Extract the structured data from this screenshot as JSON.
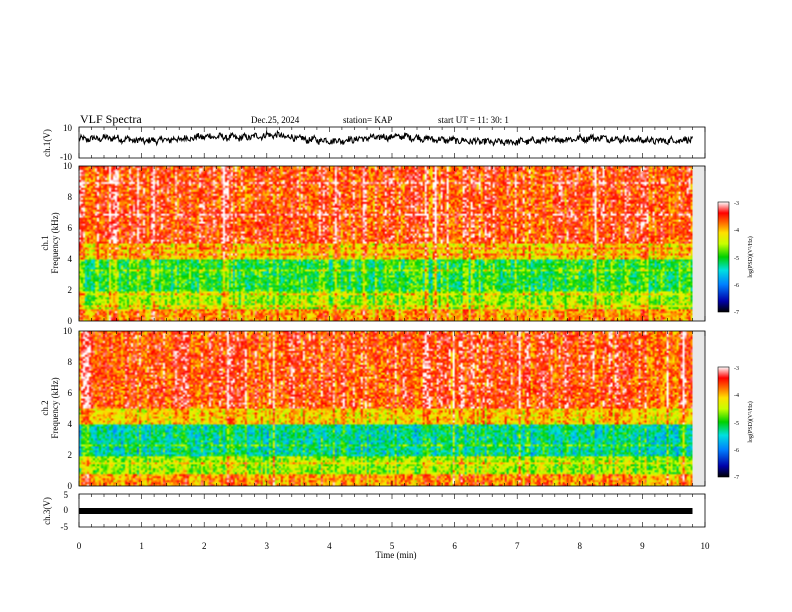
{
  "header": {
    "title": "VLF Spectra",
    "date": "Dec.25, 2024",
    "station": "station= KAP",
    "start": "start UT =   11: 30: 1"
  },
  "chart_data": [
    {
      "type": "line",
      "panel": "ch1-waveform",
      "ylabel": "ch.1(V)",
      "ylim": [
        -10,
        10
      ],
      "yticks": [
        "10",
        "-10"
      ],
      "series": [
        {
          "name": "ch.1",
          "approx_level": [
            2,
            3,
            1,
            2,
            4,
            3,
            5,
            2,
            1,
            3,
            4,
            2,
            1,
            0,
            1,
            2,
            3,
            2,
            1,
            2
          ]
        }
      ]
    },
    {
      "type": "heatmap",
      "panel": "ch1-spectrogram",
      "ylabel": "ch.1\nFrequency (kHz)",
      "ylabel_line1": "ch.1",
      "ylabel_line2": "Frequency (kHz)",
      "ylim": [
        0,
        10
      ],
      "yticks": [
        "0",
        "2",
        "4",
        "6",
        "8",
        "10"
      ],
      "colorbar": {
        "label": "log(PSD)(V²/Hz)",
        "range": [
          -7,
          -3
        ],
        "ticks": [
          "-3",
          "-4",
          "-5",
          "-6",
          "-7"
        ]
      }
    },
    {
      "type": "heatmap",
      "panel": "ch2-spectrogram",
      "ylabel_line1": "ch.2",
      "ylabel_line2": "Frequency (kHz)",
      "ylim": [
        0,
        10
      ],
      "yticks": [
        "0",
        "2",
        "4",
        "6",
        "8",
        "10"
      ],
      "colorbar": {
        "label": "log(PSD)(V²/Hz)",
        "range": [
          -7,
          -3
        ],
        "ticks": [
          "-3",
          "-4",
          "-5",
          "-6",
          "-7"
        ]
      }
    },
    {
      "type": "line",
      "panel": "ch3-waveform",
      "ylabel": "ch.3(V)",
      "ylim": [
        -5,
        5
      ],
      "yticks": [
        "5",
        "0",
        "-5"
      ],
      "series": [
        {
          "name": "ch.3",
          "approx_level": [
            -1,
            -1
          ]
        }
      ]
    }
  ],
  "xaxis": {
    "label": "Time (min)",
    "range": [
      0,
      10
    ],
    "ticks": [
      "0",
      "1",
      "2",
      "3",
      "4",
      "5",
      "6",
      "7",
      "8",
      "9",
      "10"
    ],
    "data_end": 9.8
  }
}
